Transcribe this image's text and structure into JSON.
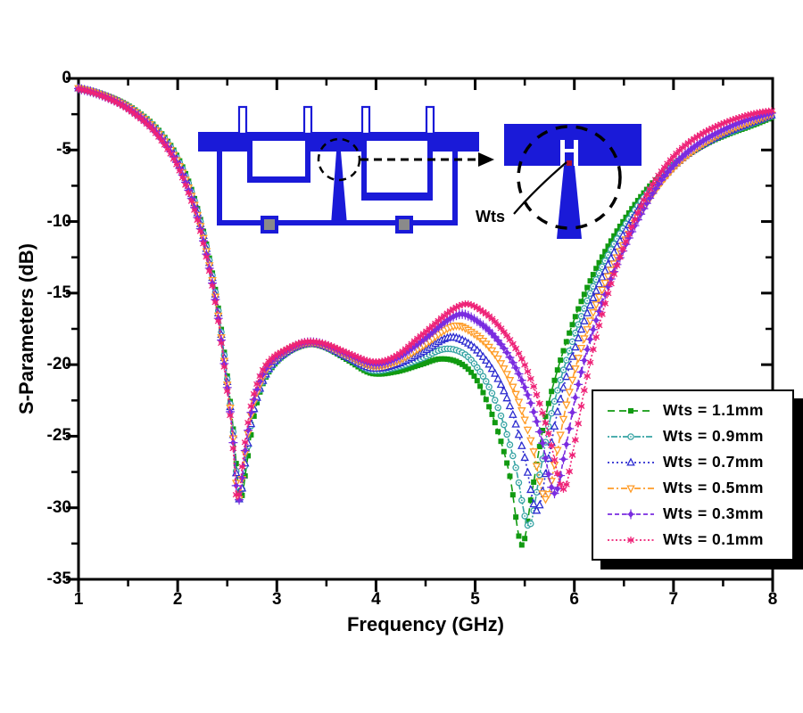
{
  "figure": {
    "background": "#ffffff"
  },
  "axes": {
    "x": {
      "label": "Frequency (GHz)",
      "min": 1,
      "max": 8,
      "ticks": [
        1,
        2,
        3,
        4,
        5,
        6,
        7,
        8
      ],
      "minor_step": 0.5
    },
    "y": {
      "label": "S-Parameters (dB)",
      "min": -35,
      "max": 0,
      "ticks": [
        0,
        -5,
        -10,
        -15,
        -20,
        -25,
        -30,
        -35
      ],
      "minor_step": 2.5
    }
  },
  "inset": {
    "wts_label": "Wts",
    "colors": {
      "metal_blue": "#1a1ad8",
      "via_fill": "#8a8a8a",
      "feed_dot": "#aa1133",
      "annotation": "#000000"
    }
  },
  "legend": {
    "position": "lower-right",
    "border": "#000000",
    "shadow": "#000000"
  },
  "chart_data": {
    "type": "line",
    "title": "",
    "xlabel": "Frequency (GHz)",
    "ylabel": "S-Parameters (dB)",
    "xlim": [
      1,
      8
    ],
    "ylim": [
      -35,
      0
    ],
    "grid": false,
    "legend_position": "lower-right",
    "series": [
      {
        "name": "Wts = 1.1mm",
        "color": "#119a11",
        "marker": "square",
        "dash": "8,5",
        "points": [
          [
            1,
            -0.65
          ],
          [
            1.15,
            -0.9
          ],
          [
            1.3,
            -1.25
          ],
          [
            1.45,
            -1.7
          ],
          [
            1.6,
            -2.35
          ],
          [
            1.75,
            -3.2
          ],
          [
            1.9,
            -4.4
          ],
          [
            2,
            -5.5
          ],
          [
            2.1,
            -7
          ],
          [
            2.2,
            -9.1
          ],
          [
            2.3,
            -11.9
          ],
          [
            2.4,
            -15.6
          ],
          [
            2.5,
            -20.8
          ],
          [
            2.56,
            -24.5
          ],
          [
            2.63,
            -29.3
          ],
          [
            2.7,
            -26.8
          ],
          [
            2.77,
            -23.6
          ],
          [
            2.85,
            -21.5
          ],
          [
            2.95,
            -20.2
          ],
          [
            3.1,
            -19.2
          ],
          [
            3.25,
            -18.7
          ],
          [
            3.38,
            -18.6
          ],
          [
            3.52,
            -18.9
          ],
          [
            3.72,
            -19.7
          ],
          [
            3.95,
            -20.6
          ],
          [
            4.2,
            -20.5
          ],
          [
            4.45,
            -20
          ],
          [
            4.65,
            -19.6
          ],
          [
            4.85,
            -19.9
          ],
          [
            5,
            -20.9
          ],
          [
            5.12,
            -22.6
          ],
          [
            5.24,
            -24.9
          ],
          [
            5.35,
            -27.8
          ],
          [
            5.47,
            -32.6
          ],
          [
            5.58,
            -28.6
          ],
          [
            5.68,
            -24.6
          ],
          [
            5.8,
            -21.1
          ],
          [
            5.97,
            -17.4
          ],
          [
            6.15,
            -14.3
          ],
          [
            6.35,
            -11.6
          ],
          [
            6.55,
            -9.4
          ],
          [
            6.75,
            -7.6
          ],
          [
            6.95,
            -6.3
          ],
          [
            7.15,
            -5.3
          ],
          [
            7.35,
            -4.5
          ],
          [
            7.55,
            -3.9
          ],
          [
            7.75,
            -3.4
          ],
          [
            7.9,
            -3
          ],
          [
            8,
            -2.7
          ]
        ]
      },
      {
        "name": "Wts = 0.9mm",
        "color": "#36a3a3",
        "marker": "circle-dot",
        "dash": "2,2,7,2",
        "points": [
          [
            1,
            -0.67
          ],
          [
            1.15,
            -0.92
          ],
          [
            1.3,
            -1.28
          ],
          [
            1.45,
            -1.74
          ],
          [
            1.6,
            -2.4
          ],
          [
            1.75,
            -3.27
          ],
          [
            1.9,
            -4.5
          ],
          [
            2,
            -5.62
          ],
          [
            2.1,
            -7.15
          ],
          [
            2.2,
            -9.25
          ],
          [
            2.3,
            -12.05
          ],
          [
            2.4,
            -15.78
          ],
          [
            2.5,
            -21
          ],
          [
            2.56,
            -24.7
          ],
          [
            2.62,
            -29.35
          ],
          [
            2.69,
            -26.6
          ],
          [
            2.76,
            -23.5
          ],
          [
            2.85,
            -21.4
          ],
          [
            2.95,
            -20.1
          ],
          [
            3.1,
            -19.15
          ],
          [
            3.25,
            -18.65
          ],
          [
            3.38,
            -18.55
          ],
          [
            3.52,
            -18.85
          ],
          [
            3.72,
            -19.55
          ],
          [
            3.95,
            -20.4
          ],
          [
            4.2,
            -20.2
          ],
          [
            4.45,
            -19.6
          ],
          [
            4.7,
            -18.9
          ],
          [
            4.9,
            -19.3
          ],
          [
            5.05,
            -20.5
          ],
          [
            5.17,
            -22
          ],
          [
            5.29,
            -24.2
          ],
          [
            5.41,
            -27.2
          ],
          [
            5.54,
            -31.3
          ],
          [
            5.65,
            -27.7
          ],
          [
            5.75,
            -24
          ],
          [
            5.88,
            -20.6
          ],
          [
            6.05,
            -17
          ],
          [
            6.23,
            -13.9
          ],
          [
            6.43,
            -11.2
          ],
          [
            6.63,
            -9
          ],
          [
            6.83,
            -7.2
          ],
          [
            7.03,
            -5.9
          ],
          [
            7.23,
            -4.9
          ],
          [
            7.43,
            -4.15
          ],
          [
            7.63,
            -3.6
          ],
          [
            7.8,
            -3.15
          ],
          [
            8,
            -2.6
          ]
        ]
      },
      {
        "name": "Wts = 0.7mm",
        "color": "#2b2bd0",
        "marker": "triangle-up",
        "dash": "2,3",
        "points": [
          [
            1,
            -0.68
          ],
          [
            1.15,
            -0.94
          ],
          [
            1.3,
            -1.3
          ],
          [
            1.45,
            -1.78
          ],
          [
            1.6,
            -2.46
          ],
          [
            1.75,
            -3.34
          ],
          [
            1.9,
            -4.6
          ],
          [
            2,
            -5.74
          ],
          [
            2.1,
            -7.3
          ],
          [
            2.2,
            -9.4
          ],
          [
            2.3,
            -12.22
          ],
          [
            2.4,
            -15.95
          ],
          [
            2.5,
            -21.2
          ],
          [
            2.56,
            -24.9
          ],
          [
            2.62,
            -29.4
          ],
          [
            2.69,
            -26.4
          ],
          [
            2.76,
            -23.4
          ],
          [
            2.85,
            -21.3
          ],
          [
            2.95,
            -20
          ],
          [
            3.1,
            -19.1
          ],
          [
            3.25,
            -18.6
          ],
          [
            3.38,
            -18.5
          ],
          [
            3.52,
            -18.8
          ],
          [
            3.72,
            -19.5
          ],
          [
            3.96,
            -20.25
          ],
          [
            4.2,
            -20
          ],
          [
            4.45,
            -19.2
          ],
          [
            4.74,
            -18.1
          ],
          [
            4.95,
            -18.6
          ],
          [
            5.12,
            -19.8
          ],
          [
            5.26,
            -21.4
          ],
          [
            5.38,
            -23.5
          ],
          [
            5.5,
            -26.5
          ],
          [
            5.62,
            -30.2
          ],
          [
            5.73,
            -26.9
          ],
          [
            5.83,
            -23.3
          ],
          [
            5.96,
            -19.9
          ],
          [
            6.13,
            -16.4
          ],
          [
            6.32,
            -13.3
          ],
          [
            6.52,
            -10.6
          ],
          [
            6.72,
            -8.4
          ],
          [
            6.92,
            -6.7
          ],
          [
            7.12,
            -5.4
          ],
          [
            7.32,
            -4.5
          ],
          [
            7.52,
            -3.8
          ],
          [
            7.72,
            -3.25
          ],
          [
            7.88,
            -2.85
          ],
          [
            8,
            -2.55
          ]
        ]
      },
      {
        "name": "Wts = 0.5mm",
        "color": "#ff9c28",
        "marker": "triangle-down",
        "dash": "7,3,2,3",
        "points": [
          [
            1,
            -0.69
          ],
          [
            1.15,
            -0.96
          ],
          [
            1.3,
            -1.33
          ],
          [
            1.45,
            -1.82
          ],
          [
            1.6,
            -2.52
          ],
          [
            1.75,
            -3.42
          ],
          [
            1.9,
            -4.7
          ],
          [
            2,
            -5.86
          ],
          [
            2.1,
            -7.45
          ],
          [
            2.2,
            -9.55
          ],
          [
            2.3,
            -12.4
          ],
          [
            2.4,
            -16.12
          ],
          [
            2.5,
            -21.4
          ],
          [
            2.55,
            -24.3
          ],
          [
            2.61,
            -29.4
          ],
          [
            2.68,
            -26.2
          ],
          [
            2.75,
            -23.2
          ],
          [
            2.84,
            -21.2
          ],
          [
            2.94,
            -19.9
          ],
          [
            3.1,
            -19.05
          ],
          [
            3.25,
            -18.58
          ],
          [
            3.38,
            -18.5
          ],
          [
            3.52,
            -18.76
          ],
          [
            3.72,
            -19.4
          ],
          [
            3.97,
            -20.1
          ],
          [
            4.2,
            -19.8
          ],
          [
            4.45,
            -18.8
          ],
          [
            4.79,
            -17.3
          ],
          [
            5,
            -17.9
          ],
          [
            5.18,
            -19.1
          ],
          [
            5.33,
            -20.8
          ],
          [
            5.46,
            -23
          ],
          [
            5.58,
            -25.8
          ],
          [
            5.71,
            -29.4
          ],
          [
            5.82,
            -26.3
          ],
          [
            5.92,
            -22.8
          ],
          [
            6.05,
            -19.3
          ],
          [
            6.22,
            -15.8
          ],
          [
            6.41,
            -12.8
          ],
          [
            6.61,
            -10.1
          ],
          [
            6.81,
            -7.9
          ],
          [
            7.01,
            -6.2
          ],
          [
            7.21,
            -5
          ],
          [
            7.41,
            -4.1
          ],
          [
            7.61,
            -3.45
          ],
          [
            7.81,
            -2.95
          ],
          [
            8,
            -2.5
          ]
        ]
      },
      {
        "name": "Wts = 0.3mm",
        "color": "#7a2ce0",
        "marker": "diamond-plus",
        "dash": "5,3",
        "points": [
          [
            1,
            -0.71
          ],
          [
            1.15,
            -0.98
          ],
          [
            1.3,
            -1.37
          ],
          [
            1.45,
            -1.87
          ],
          [
            1.6,
            -2.58
          ],
          [
            1.75,
            -3.5
          ],
          [
            1.9,
            -4.82
          ],
          [
            2,
            -6
          ],
          [
            2.1,
            -7.62
          ],
          [
            2.2,
            -9.72
          ],
          [
            2.3,
            -12.6
          ],
          [
            2.4,
            -16.3
          ],
          [
            2.5,
            -21.6
          ],
          [
            2.55,
            -24.6
          ],
          [
            2.61,
            -29.5
          ],
          [
            2.68,
            -26
          ],
          [
            2.75,
            -23
          ],
          [
            2.84,
            -21
          ],
          [
            2.94,
            -19.8
          ],
          [
            3.1,
            -19
          ],
          [
            3.25,
            -18.52
          ],
          [
            3.38,
            -18.45
          ],
          [
            3.52,
            -18.7
          ],
          [
            3.72,
            -19.3
          ],
          [
            3.98,
            -19.95
          ],
          [
            4.2,
            -19.6
          ],
          [
            4.45,
            -18.4
          ],
          [
            4.83,
            -16.5
          ],
          [
            5.05,
            -17.1
          ],
          [
            5.24,
            -18.4
          ],
          [
            5.4,
            -20.1
          ],
          [
            5.54,
            -22.3
          ],
          [
            5.67,
            -25.2
          ],
          [
            5.8,
            -29
          ],
          [
            5.91,
            -25.9
          ],
          [
            6.01,
            -22.3
          ],
          [
            6.14,
            -18.7
          ],
          [
            6.31,
            -15.1
          ],
          [
            6.5,
            -11.9
          ],
          [
            6.7,
            -9.1
          ],
          [
            6.9,
            -6.9
          ],
          [
            7.1,
            -5.4
          ],
          [
            7.3,
            -4.35
          ],
          [
            7.5,
            -3.6
          ],
          [
            7.7,
            -3
          ],
          [
            7.87,
            -2.65
          ],
          [
            8,
            -2.4
          ]
        ]
      },
      {
        "name": "Wts = 0.1mm",
        "color": "#ee2277",
        "marker": "star",
        "dash": "2,2.5",
        "points": [
          [
            1,
            -0.73
          ],
          [
            1.15,
            -1.01
          ],
          [
            1.3,
            -1.41
          ],
          [
            1.45,
            -1.93
          ],
          [
            1.6,
            -2.66
          ],
          [
            1.75,
            -3.6
          ],
          [
            1.9,
            -4.95
          ],
          [
            2,
            -6.16
          ],
          [
            2.1,
            -7.82
          ],
          [
            2.2,
            -9.9
          ],
          [
            2.3,
            -12.8
          ],
          [
            2.4,
            -16.5
          ],
          [
            2.5,
            -21.85
          ],
          [
            2.55,
            -24.9
          ],
          [
            2.6,
            -29.5
          ],
          [
            2.67,
            -25.9
          ],
          [
            2.74,
            -22.9
          ],
          [
            2.83,
            -20.8
          ],
          [
            2.93,
            -19.7
          ],
          [
            3.09,
            -18.95
          ],
          [
            3.25,
            -18.45
          ],
          [
            3.38,
            -18.4
          ],
          [
            3.52,
            -18.62
          ],
          [
            3.72,
            -19.2
          ],
          [
            3.98,
            -19.8
          ],
          [
            4.2,
            -19.4
          ],
          [
            4.45,
            -18
          ],
          [
            4.87,
            -15.8
          ],
          [
            5.1,
            -16.4
          ],
          [
            5.3,
            -17.8
          ],
          [
            5.47,
            -19.6
          ],
          [
            5.61,
            -21.9
          ],
          [
            5.74,
            -24.8
          ],
          [
            5.89,
            -28.7
          ],
          [
            6,
            -25.6
          ],
          [
            6.1,
            -21.8
          ],
          [
            6.23,
            -17.8
          ],
          [
            6.39,
            -13.9
          ],
          [
            6.56,
            -10.7
          ],
          [
            6.73,
            -8.1
          ],
          [
            6.9,
            -6.3
          ],
          [
            7.08,
            -4.9
          ],
          [
            7.28,
            -3.9
          ],
          [
            7.48,
            -3.2
          ],
          [
            7.68,
            -2.7
          ],
          [
            7.85,
            -2.4
          ],
          [
            8,
            -2.25
          ]
        ]
      }
    ]
  }
}
